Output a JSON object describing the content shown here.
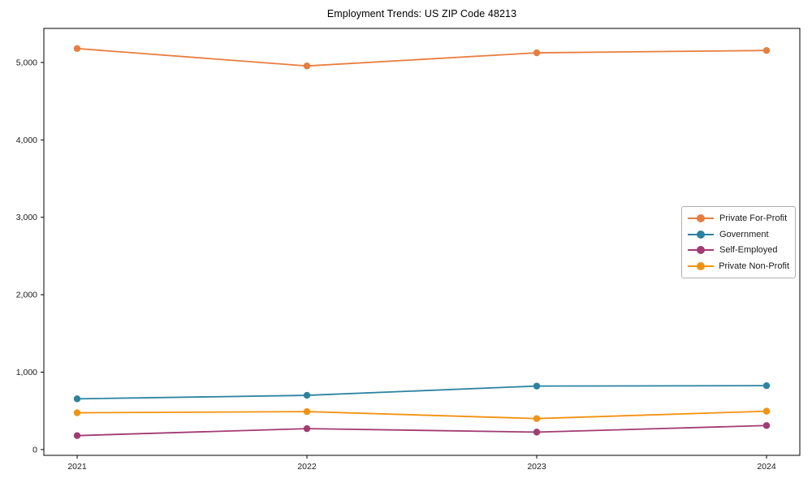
{
  "chart_data": {
    "type": "line",
    "title": "Employment Trends: US ZIP Code 48213",
    "x": [
      "2021",
      "2022",
      "2023",
      "2024"
    ],
    "series": [
      {
        "name": "Private For-Profit",
        "color": "#e87e3e",
        "values": [
          5180,
          4955,
          5125,
          5155
        ]
      },
      {
        "name": "Government",
        "color": "#2b83a1",
        "values": [
          655,
          700,
          820,
          825
        ]
      },
      {
        "name": "Self-Employed",
        "color": "#a23b72",
        "values": [
          180,
          270,
          225,
          310
        ]
      },
      {
        "name": "Private Non-Profit",
        "color": "#f3920f",
        "values": [
          475,
          490,
          400,
          495
        ]
      }
    ],
    "xlabel": "",
    "ylabel": "",
    "ylim": [
      -75,
      5440
    ],
    "yticks": [
      {
        "value": 0,
        "label": "0"
      },
      {
        "value": 1000,
        "label": "1,000"
      },
      {
        "value": 2000,
        "label": "2,000"
      },
      {
        "value": 3000,
        "label": "3,000"
      },
      {
        "value": 4000,
        "label": "4,000"
      },
      {
        "value": 5000,
        "label": "5,000"
      }
    ],
    "grid": false,
    "legend_position": "center-right",
    "marker": "circle",
    "axis_color": "#000000",
    "tick_label_color": "#1a1a1a"
  }
}
